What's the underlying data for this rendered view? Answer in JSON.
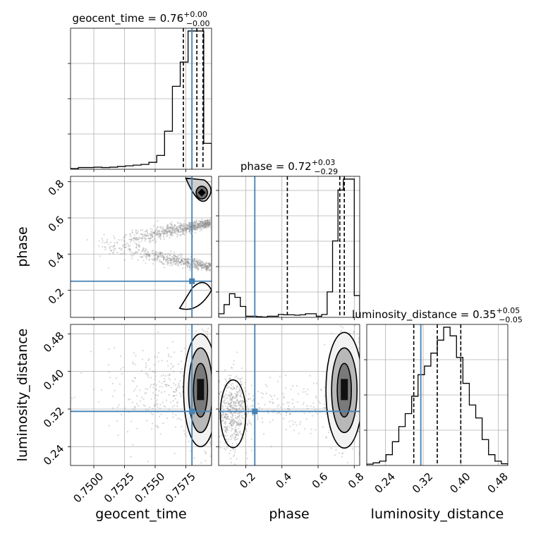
{
  "chart_data": {
    "type": "corner",
    "parameters": [
      "geocent_time",
      "phase",
      "luminosity_distance"
    ],
    "ranges": [
      [
        0.7481,
        0.7596
      ],
      [
        0.05,
        0.83
      ],
      [
        0.2,
        0.5
      ]
    ],
    "ticks": [
      [
        0.75,
        0.7525,
        0.755,
        0.7575
      ],
      [
        0.2,
        0.4,
        0.6,
        0.8
      ],
      [
        0.24,
        0.32,
        0.4,
        0.48
      ]
    ],
    "tick_labels": [
      [
        "0.7500",
        "0.7525",
        "0.7550",
        "0.7575"
      ],
      [
        "0.2",
        "0.4",
        "0.6",
        "0.8"
      ],
      [
        "0.24",
        "0.32",
        "0.40",
        "0.48"
      ]
    ],
    "titles": [
      {
        "name": "geocent_time",
        "median": "0.76",
        "plus": "+0.00",
        "minus": "−0.00"
      },
      {
        "name": "phase",
        "median": "0.72",
        "plus": "+0.03",
        "minus": "−0.29"
      },
      {
        "name": "luminosity_distance",
        "median": "0.35",
        "plus": "+0.05",
        "minus": "−0.05"
      }
    ],
    "truths": [
      0.758,
      0.25,
      0.315
    ],
    "quantiles": [
      [
        0.7573,
        0.7584,
        0.7589
      ],
      [
        0.43,
        0.72,
        0.745
      ],
      [
        0.3,
        0.35,
        0.4
      ]
    ],
    "histograms": [
      [
        0.2,
        0.5,
        0.5,
        0.6,
        0.5,
        0.6,
        0.8,
        1.0,
        1.2,
        1.4,
        2.0,
        4.0,
        11.0,
        24.0,
        31.0,
        40.0,
        40.0,
        7.5
      ],
      [
        1.0,
        3.5,
        6.5,
        5.5,
        3.0,
        0.3,
        0.3,
        0.2,
        0.1,
        0.3,
        0.3,
        0.8,
        0.7,
        0.7,
        0.6,
        0.7,
        1.0,
        1.0,
        0.3,
        0.8,
        7.0,
        21.0,
        35.0,
        38.0,
        38.0,
        6.0
      ],
      [
        0.3,
        0.6,
        1.0,
        2.5,
        5.5,
        9.0,
        12.0,
        16.0,
        21.0,
        23.0,
        26.0,
        29.0,
        32.0,
        30.0,
        25.0,
        19.0,
        14.0,
        11.0,
        6.0,
        2.5,
        1.0,
        0.4
      ]
    ],
    "hist_axis_ticks": [
      [
        0.25,
        0.5,
        0.75
      ],
      [
        0.18,
        0.36,
        0.54,
        0.72,
        0.9
      ],
      [
        0.25,
        0.5,
        0.75
      ]
    ],
    "grid": true,
    "colors": {
      "truth": "#4682b4",
      "quantile": "#000000",
      "scatter": "#8c8c8c",
      "hist": "#000000"
    }
  }
}
